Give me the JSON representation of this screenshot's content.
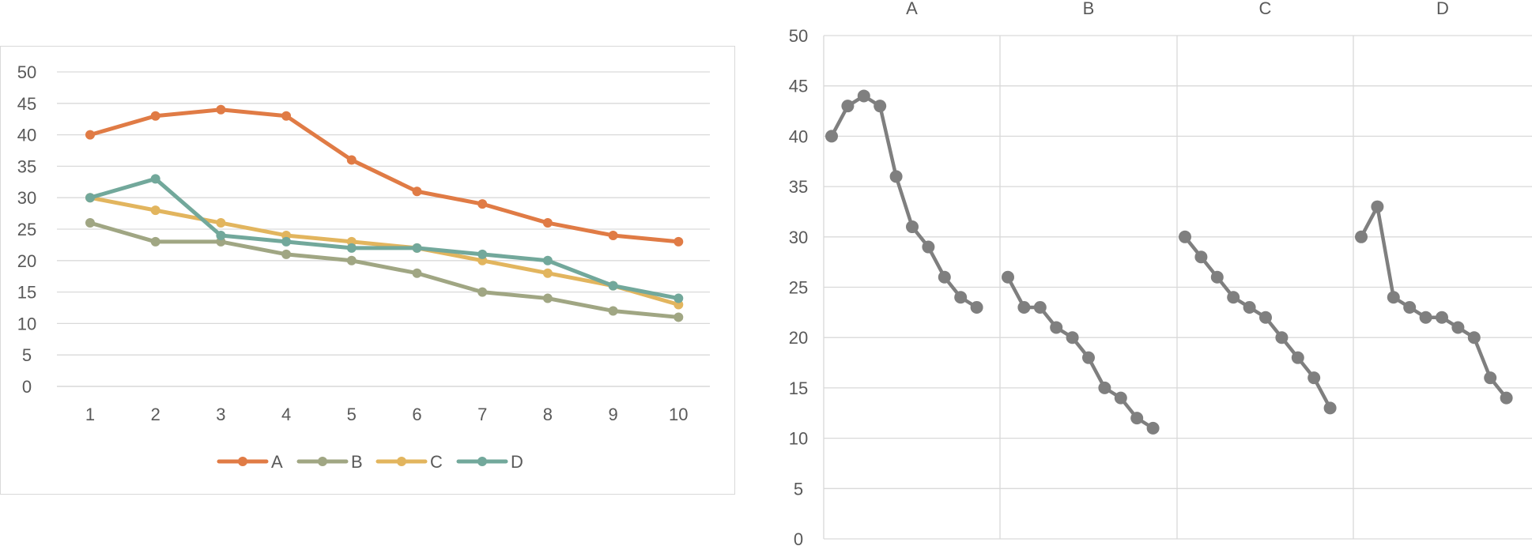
{
  "chart_data": [
    {
      "type": "line",
      "title": "",
      "xlabel": "",
      "ylabel": "",
      "categories": [
        "1",
        "2",
        "3",
        "4",
        "5",
        "6",
        "7",
        "8",
        "9",
        "10"
      ],
      "ylim": [
        0,
        50
      ],
      "yticks": [
        "0",
        "5",
        "10",
        "15",
        "20",
        "25",
        "30",
        "35",
        "40",
        "45",
        "50"
      ],
      "grid": true,
      "legend_position": "bottom",
      "series": [
        {
          "name": "A",
          "color": "#E07B45",
          "values": [
            40,
            43,
            44,
            43,
            36,
            31,
            29,
            26,
            24,
            23
          ]
        },
        {
          "name": "B",
          "color": "#A0A683",
          "values": [
            26,
            23,
            23,
            21,
            20,
            18,
            15,
            14,
            12,
            11
          ]
        },
        {
          "name": "C",
          "color": "#E2B55E",
          "values": [
            30,
            28,
            26,
            24,
            23,
            22,
            20,
            18,
            16,
            13
          ]
        },
        {
          "name": "D",
          "color": "#72A89B",
          "values": [
            30,
            33,
            24,
            23,
            22,
            22,
            21,
            20,
            16,
            14
          ]
        }
      ]
    },
    {
      "type": "line",
      "title": "",
      "xlabel": "",
      "ylabel": "",
      "panels": [
        "A",
        "B",
        "C",
        "D"
      ],
      "ylim": [
        0,
        50
      ],
      "yticks": [
        "0",
        "5",
        "10",
        "15",
        "20",
        "25",
        "30",
        "35",
        "40",
        "45",
        "50"
      ],
      "grid": true,
      "line_color": "#7F7F7F",
      "series": [
        {
          "name": "A",
          "values": [
            40,
            43,
            44,
            43,
            36,
            31,
            29,
            26,
            24,
            23
          ]
        },
        {
          "name": "B",
          "values": [
            26,
            23,
            23,
            21,
            20,
            18,
            15,
            14,
            12,
            11
          ]
        },
        {
          "name": "C",
          "values": [
            30,
            28,
            26,
            24,
            23,
            22,
            20,
            18,
            16,
            13
          ]
        },
        {
          "name": "D",
          "values": [
            30,
            33,
            24,
            23,
            22,
            22,
            21,
            20,
            16,
            14
          ]
        }
      ]
    }
  ]
}
